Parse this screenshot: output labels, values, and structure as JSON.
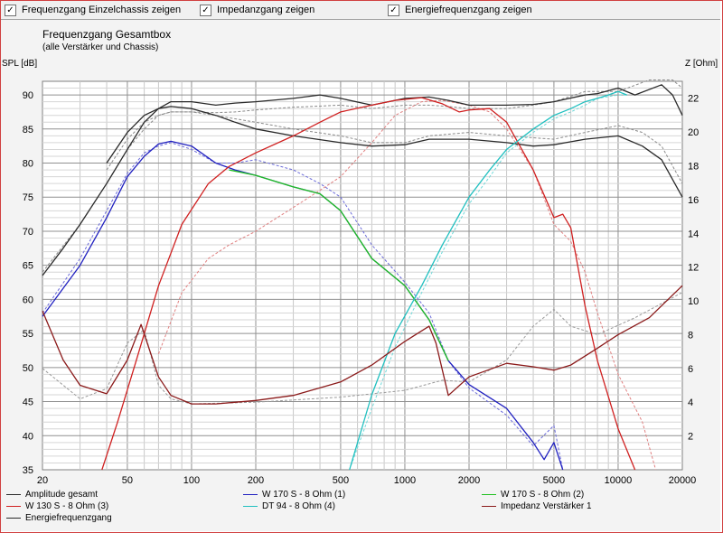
{
  "toolbar": {
    "checkboxes": [
      {
        "label": "Frequenzgang Einzelchassis zeigen",
        "checked": true
      },
      {
        "label": "Impedanzgang zeigen",
        "checked": true
      },
      {
        "label": "Energiefrequenzgang zeigen",
        "checked": true
      }
    ],
    "check_glyph": "✓"
  },
  "chart_data": {
    "type": "line",
    "title": "Frequenzgang Gesamtbox",
    "subtitle": "(alle Verstärker und Chassis)",
    "x_scale": "log",
    "xlim": [
      20,
      20000
    ],
    "xticks": [
      20,
      50,
      100,
      200,
      500,
      1000,
      2000,
      5000,
      10000,
      20000
    ],
    "ylabel_left": "SPL [dB]",
    "ylim_left": [
      35,
      92
    ],
    "yticks_left": [
      35,
      40,
      45,
      50,
      55,
      60,
      65,
      70,
      75,
      80,
      85,
      90
    ],
    "ylabel_right": "Z [Ohm]",
    "ylim_right": [
      0,
      23
    ],
    "yticks_right": [
      2,
      4,
      6,
      8,
      10,
      12,
      14,
      16,
      18,
      20,
      22
    ],
    "grid": true,
    "series": [
      {
        "name": "Amplitude gesamt",
        "color": "#2a2a2a",
        "axis": "left",
        "x": [
          20,
          25,
          30,
          40,
          50,
          60,
          70,
          80,
          100,
          130,
          160,
          200,
          300,
          400,
          500,
          700,
          1000,
          1300,
          1600,
          2000,
          3000,
          4000,
          5000,
          7000,
          8000,
          10000,
          12000,
          16000,
          18000,
          20000
        ],
        "y": [
          63.5,
          67.5,
          71,
          77,
          82,
          86,
          88,
          89,
          89,
          88.5,
          88.8,
          89,
          89.5,
          90,
          89.5,
          88.5,
          89.5,
          89.7,
          89.2,
          88.5,
          88.5,
          88.6,
          89,
          90,
          90.2,
          91,
          90,
          91.5,
          90,
          87
        ]
      },
      {
        "name": "Energiefrequenzgang",
        "color": "#2a2a2a",
        "axis": "left",
        "x": [
          40,
          50,
          60,
          70,
          80,
          100,
          130,
          160,
          200,
          300,
          500,
          700,
          1000,
          1300,
          2000,
          3000,
          4000,
          5000,
          7000,
          10000,
          13000,
          16000,
          20000
        ],
        "y": [
          80,
          84.5,
          87,
          88,
          88.3,
          88,
          87,
          86,
          85,
          84,
          83,
          82.5,
          82.7,
          83.5,
          83.5,
          83,
          82.5,
          82.7,
          83.5,
          84,
          82.5,
          80.5,
          75
        ]
      },
      {
        "name": "W 170 S - 8 Ohm (1)",
        "color": "#2020c0",
        "axis": "left",
        "x": [
          20,
          30,
          40,
          50,
          60,
          70,
          80,
          100,
          130,
          160,
          200,
          300,
          400,
          500,
          700,
          1000,
          1300,
          1600,
          2000,
          3000,
          4000,
          4500,
          5000,
          5500
        ],
        "y": [
          57.5,
          65,
          72,
          78,
          81,
          82.8,
          83.2,
          82.5,
          80,
          79,
          78.2,
          76.5,
          75.5,
          73,
          66,
          62,
          57,
          51,
          47.5,
          44,
          39,
          36.5,
          39,
          35
        ]
      },
      {
        "name": "W 170 S - 8 Ohm (2)",
        "color": "#20c020",
        "axis": "left",
        "x": [
          150,
          200,
          300,
          400,
          500,
          700,
          1000,
          1300,
          1600
        ],
        "y": [
          79,
          78.2,
          76.5,
          75.5,
          73,
          66,
          62,
          57,
          51
        ]
      },
      {
        "name": "W 130 S - 8 Ohm (3)",
        "color": "#d02020",
        "axis": "left",
        "x": [
          38,
          45,
          55,
          70,
          90,
          120,
          150,
          200,
          300,
          400,
          500,
          700,
          900,
          1200,
          1500,
          1800,
          2000,
          2500,
          3000,
          4000,
          5000,
          5500,
          6000,
          7000,
          8000,
          10000,
          12000
        ],
        "y": [
          35,
          42,
          51,
          62,
          71,
          77,
          79.5,
          81.5,
          84,
          86,
          87.5,
          88.5,
          89.2,
          89.6,
          88.7,
          87.5,
          87.8,
          88,
          86,
          79,
          72,
          72.5,
          70.5,
          59,
          51,
          41,
          35
        ]
      },
      {
        "name": "DT 94 - 8 Ohm (4)",
        "color": "#20c0c0",
        "axis": "left",
        "x": [
          550,
          700,
          900,
          1200,
          1500,
          2000,
          2500,
          3000,
          4000,
          5000,
          6000,
          7000,
          8000,
          9000,
          10000,
          11000
        ],
        "y": [
          35,
          46,
          55,
          62,
          68,
          75,
          79,
          82,
          85,
          87,
          88,
          89,
          89.5,
          90,
          90.5,
          90
        ]
      },
      {
        "name": "Impedanz Verstärker 1",
        "color": "#8b1a1a",
        "axis": "right",
        "x": [
          20,
          25,
          30,
          40,
          50,
          58,
          70,
          80,
          100,
          130,
          200,
          300,
          500,
          700,
          1000,
          1300,
          1400,
          1600,
          2000,
          3000,
          4000,
          5000,
          6000,
          8000,
          10000,
          14000,
          20000
        ],
        "y": [
          9.4,
          6.5,
          5,
          4.5,
          6.5,
          8.6,
          5.5,
          4.4,
          3.9,
          3.9,
          4.1,
          4.4,
          5.2,
          6.2,
          7.6,
          8.5,
          7.5,
          4.4,
          5.5,
          6.3,
          6.1,
          5.9,
          6.2,
          7.2,
          8,
          9,
          10.9
        ]
      },
      {
        "name": "",
        "color": "#8a8a8a",
        "axis": "left",
        "dash": true,
        "x": [
          20,
          30,
          40,
          50,
          60,
          70,
          80,
          100,
          130,
          160,
          200,
          300,
          500,
          700,
          1000,
          1300,
          1600,
          2000,
          3000,
          4000,
          5000,
          7000,
          10000,
          14000,
          18000,
          20000
        ],
        "y": [
          64,
          71,
          77,
          82,
          85,
          87,
          87.5,
          87.5,
          87.4,
          87.5,
          87.8,
          88.2,
          88.5,
          88,
          88.5,
          88.5,
          88.3,
          88,
          88,
          88.5,
          89,
          90.5,
          90.5,
          92.2,
          92.2,
          91
        ]
      },
      {
        "name": "",
        "color": "#8a8a8a",
        "axis": "left",
        "dash": true,
        "x": [
          40,
          50,
          60,
          70,
          80,
          100,
          130,
          160,
          200,
          300,
          500,
          700,
          1000,
          1300,
          2000,
          3000,
          5000,
          7000,
          10000,
          13000,
          16000,
          20000
        ],
        "y": [
          79,
          83.5,
          86,
          87,
          87.5,
          87.5,
          87,
          86.5,
          86,
          85,
          84,
          83,
          83,
          84,
          84.5,
          84,
          83.5,
          84.5,
          85.5,
          84.5,
          82.5,
          77
        ]
      },
      {
        "name": "",
        "color": "#6a6ad8",
        "axis": "left",
        "dash": true,
        "x": [
          20,
          30,
          40,
          50,
          60,
          70,
          80,
          100,
          130,
          160,
          200,
          300,
          400,
          500,
          700,
          1000,
          1300,
          1600,
          2000,
          3000,
          4000,
          5000,
          5500
        ],
        "y": [
          58,
          66,
          73,
          78.5,
          81.5,
          82.5,
          83,
          82,
          80,
          80,
          80.5,
          79,
          77,
          75,
          68,
          62.5,
          58,
          51,
          47,
          43,
          38.5,
          41.5,
          35
        ]
      },
      {
        "name": "",
        "color": "#e08080",
        "axis": "left",
        "dash": true,
        "x": [
          70,
          90,
          120,
          150,
          200,
          300,
          400,
          500,
          700,
          900,
          1200,
          1500,
          2000,
          2500,
          3000,
          4000,
          5000,
          6000,
          7000,
          8000,
          10000,
          13000,
          15000
        ],
        "y": [
          52,
          61,
          66,
          68,
          70,
          73.5,
          76,
          78,
          83,
          87,
          89,
          89.2,
          88.5,
          87.5,
          85,
          79,
          71,
          68.5,
          64,
          58,
          49,
          42,
          35
        ]
      },
      {
        "name": "",
        "color": "#70d8d8",
        "axis": "left",
        "dash": true,
        "x": [
          550,
          700,
          900,
          1200,
          1500,
          2000,
          2500,
          3000,
          4000,
          5000,
          6000,
          7000,
          8000,
          10000,
          11000
        ],
        "y": [
          35,
          44,
          53,
          61,
          67,
          74,
          78,
          81.5,
          84.5,
          86.5,
          87.5,
          88.5,
          89.5,
          90,
          90
        ]
      },
      {
        "name": "",
        "color": "#9a9a9a",
        "axis": "right",
        "dash": true,
        "x": [
          20,
          30,
          40,
          50,
          60,
          70,
          80,
          100,
          200,
          500,
          1000,
          1500,
          2000,
          3000,
          4000,
          5000,
          6000,
          8000,
          12000,
          20000
        ],
        "y": [
          6,
          4.2,
          4.8,
          7.5,
          8.3,
          5,
          4.2,
          3.9,
          4,
          4.3,
          4.7,
          5.3,
          5.2,
          6.5,
          8.5,
          9.5,
          8.5,
          8,
          9,
          10.5
        ]
      }
    ]
  }
}
